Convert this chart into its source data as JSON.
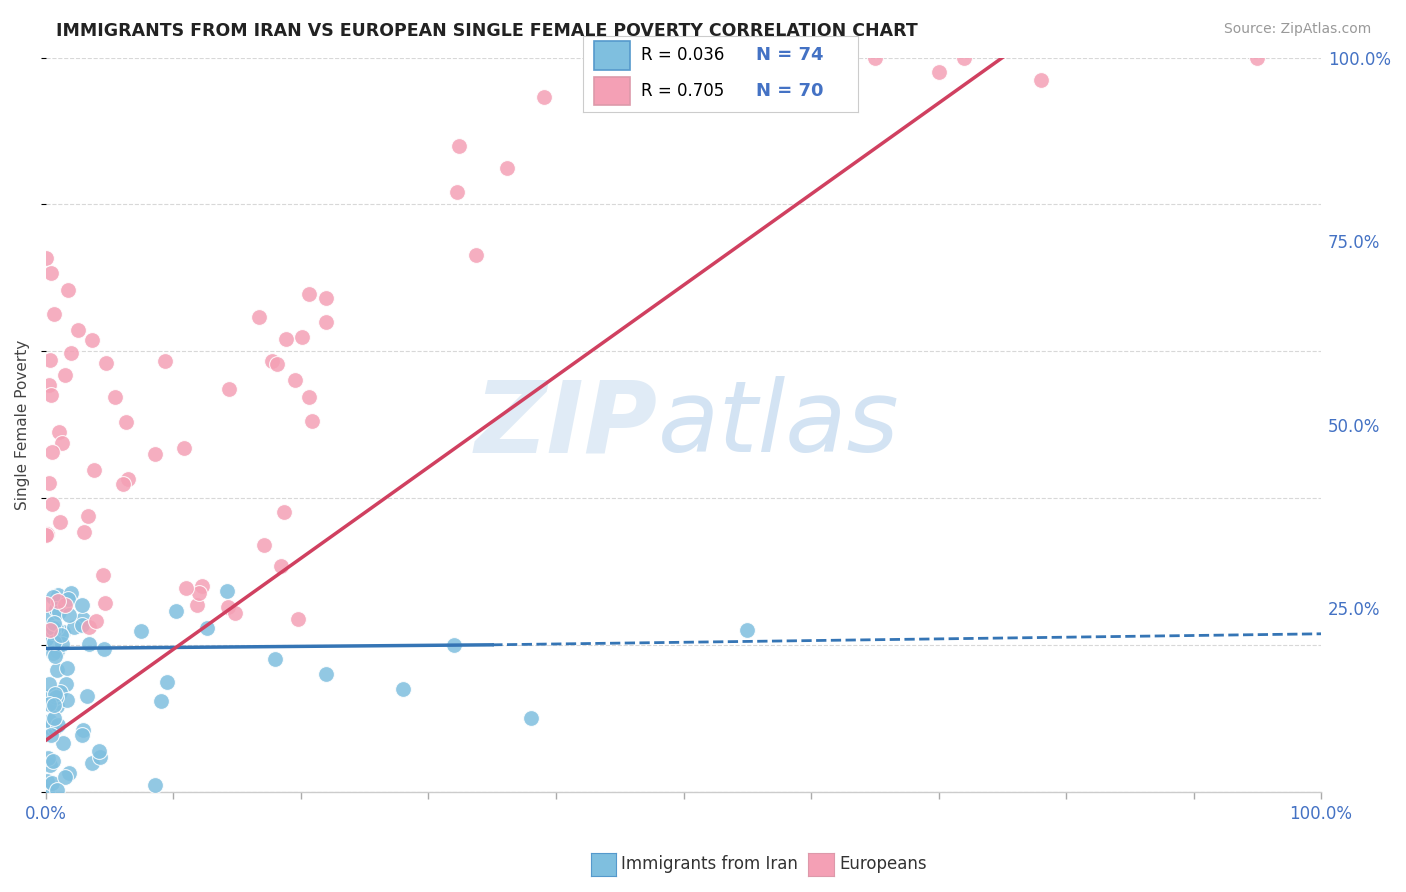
{
  "title": "IMMIGRANTS FROM IRAN VS EUROPEAN SINGLE FEMALE POVERTY CORRELATION CHART",
  "source": "Source: ZipAtlas.com",
  "ylabel": "Single Female Poverty",
  "legend1_label": "Immigrants from Iran",
  "legend2_label": "Europeans",
  "legend1_R": "R = 0.036",
  "legend1_N": "N = 74",
  "legend2_R": "R = 0.705",
  "legend2_N": "N = 70",
  "blue_color": "#7fbfdf",
  "pink_color": "#f4a0b5",
  "blue_line_color": "#3575b5",
  "pink_line_color": "#d04060",
  "axis_color": "#4472c4",
  "tick_label_color": "#4472c4",
  "xlim": [
    0.0,
    1.0
  ],
  "ylim": [
    0.0,
    1.0
  ],
  "grid_color": "#d8d8d8",
  "title_color": "#222222",
  "source_color": "#999999",
  "watermark_zip_color": "#ccdff0",
  "watermark_atlas_color": "#a8c8e8"
}
